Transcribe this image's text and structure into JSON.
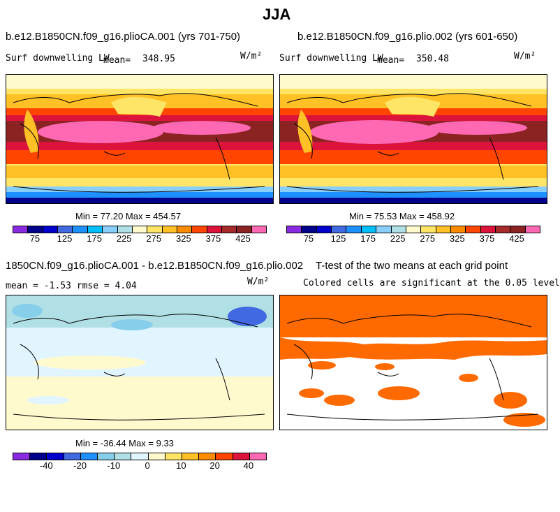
{
  "figure": {
    "title": "JJA"
  },
  "panel_a": {
    "case_title": "b.e12.B1850CN.f09_g16.plioCA.001 (yrs 701-750)",
    "variable": "Surf downwelling LW",
    "mean_label": "mean=",
    "mean_value": "348.95",
    "units": "W/m²",
    "minmax": "Min =  77.20 Max = 454.57"
  },
  "panel_b": {
    "case_title": "b.e12.B1850CN.f09_g16.plio.002 (yrs 601-650)",
    "variable": "Surf downwelling LW",
    "mean_label": "mean=",
    "mean_value": "350.48",
    "units": "W/m²",
    "minmax": "Min =  75.53 Max = 458.92"
  },
  "panel_c": {
    "case_title": "1850CN.f09_g16.plioCA.001 - b.e12.B1850CN.f09_g16.plio.002",
    "stats": "mean =   -1.53    rmse =    4.04",
    "units": "W/m²",
    "minmax": "Min = -36.44 Max =   9.33"
  },
  "panel_d": {
    "case_title": "T-test of the two means at each grid point",
    "subtitle": "Colored cells are significant at the 0.05 level"
  },
  "colorbars": {
    "abs_colors": [
      "#8a2be2",
      "#00008b",
      "#0000cd",
      "#4169e1",
      "#1e90ff",
      "#00bfff",
      "#87cefa",
      "#b0e0e6",
      "#fffacd",
      "#ffe566",
      "#ffc125",
      "#ff8c00",
      "#ff4500",
      "#dc143c",
      "#a52a2a",
      "#8b2323",
      "#ff69b4"
    ],
    "abs_ticks": [
      "75",
      "125",
      "175",
      "225",
      "275",
      "325",
      "375",
      "425"
    ],
    "diff_colors": [
      "#8a2be2",
      "#00008b",
      "#0000cd",
      "#4169e1",
      "#1e90ff",
      "#87ceeb",
      "#b0e0e6",
      "#e0f5ff",
      "#fffacd",
      "#ffe566",
      "#ffc125",
      "#ff8c00",
      "#ff4500",
      "#dc143c",
      "#ff69b4"
    ],
    "diff_ticks": [
      "-40",
      "-20",
      "-10",
      "0",
      "10",
      "20",
      "40"
    ]
  },
  "chart_data": [
    {
      "type": "heatmap",
      "title": "b.e12.B1850CN.f09_g16.plioCA.001 (yrs 701-750)",
      "variable": "Surf downwelling LW",
      "units": "W/m2",
      "mean": 348.95,
      "min": 77.2,
      "max": 454.57,
      "colorbar_ticks": [
        75,
        125,
        175,
        225,
        275,
        325,
        375,
        425
      ]
    },
    {
      "type": "heatmap",
      "title": "b.e12.B1850CN.f09_g16.plio.002 (yrs 601-650)",
      "variable": "Surf downwelling LW",
      "units": "W/m2",
      "mean": 350.48,
      "min": 75.53,
      "max": 458.92,
      "colorbar_ticks": [
        75,
        125,
        175,
        225,
        275,
        325,
        375,
        425
      ]
    },
    {
      "type": "heatmap",
      "title": "1850CN.f09_g16.plioCA.001 - b.e12.B1850CN.f09_g16.plio.002",
      "units": "W/m2",
      "mean": -1.53,
      "rmse": 4.04,
      "min": -36.44,
      "max": 9.33,
      "colorbar_ticks": [
        -40,
        -20,
        -10,
        0,
        10,
        20,
        40
      ]
    },
    {
      "type": "heatmap",
      "title": "T-test of the two means at each grid point",
      "subtitle": "Colored cells are significant at the 0.05 level",
      "significance_level": 0.05,
      "significant_color": "#ff6a00"
    }
  ]
}
